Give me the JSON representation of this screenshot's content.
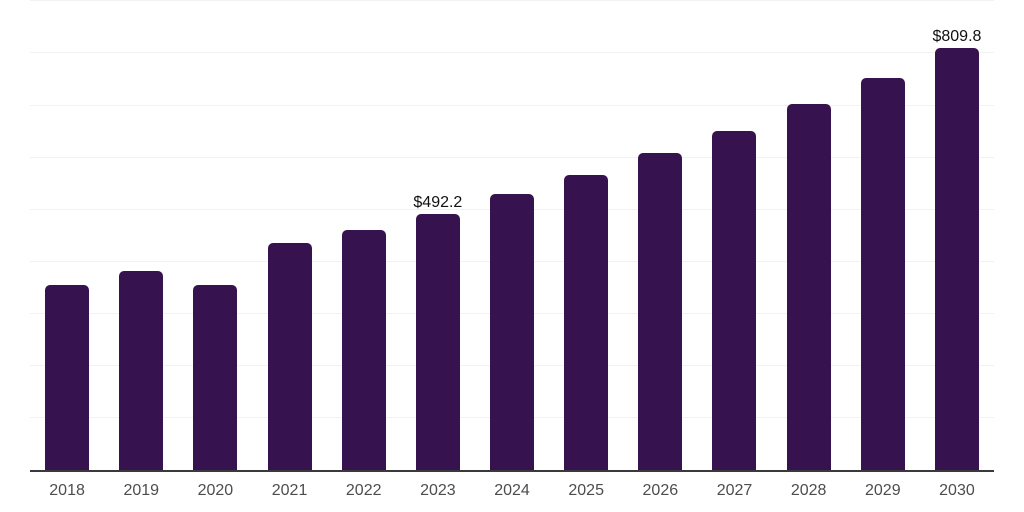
{
  "chart_data": {
    "type": "bar",
    "title": "",
    "xlabel": "",
    "ylabel": "",
    "categories": [
      "2018",
      "2019",
      "2020",
      "2021",
      "2022",
      "2023",
      "2024",
      "2025",
      "2026",
      "2027",
      "2028",
      "2029",
      "2030"
    ],
    "values": [
      355.9,
      382.2,
      354.7,
      436.6,
      460.9,
      492.2,
      529.4,
      567.2,
      608.2,
      651.7,
      703.0,
      752.3,
      809.8
    ],
    "bar_labels": {
      "2023": "$492.2",
      "2030": "$809.8"
    },
    "ylim": [
      0,
      900
    ],
    "grid_step": 100,
    "grid": true,
    "y_axis_labels_shown": false,
    "legend": "none"
  },
  "colors": {
    "bar": "#36124E",
    "gridline": "#f2f2f2",
    "axis": "#3a3a3a",
    "tick_label": "#4d4d4d",
    "value_label": "#111111",
    "background": "#ffffff"
  }
}
